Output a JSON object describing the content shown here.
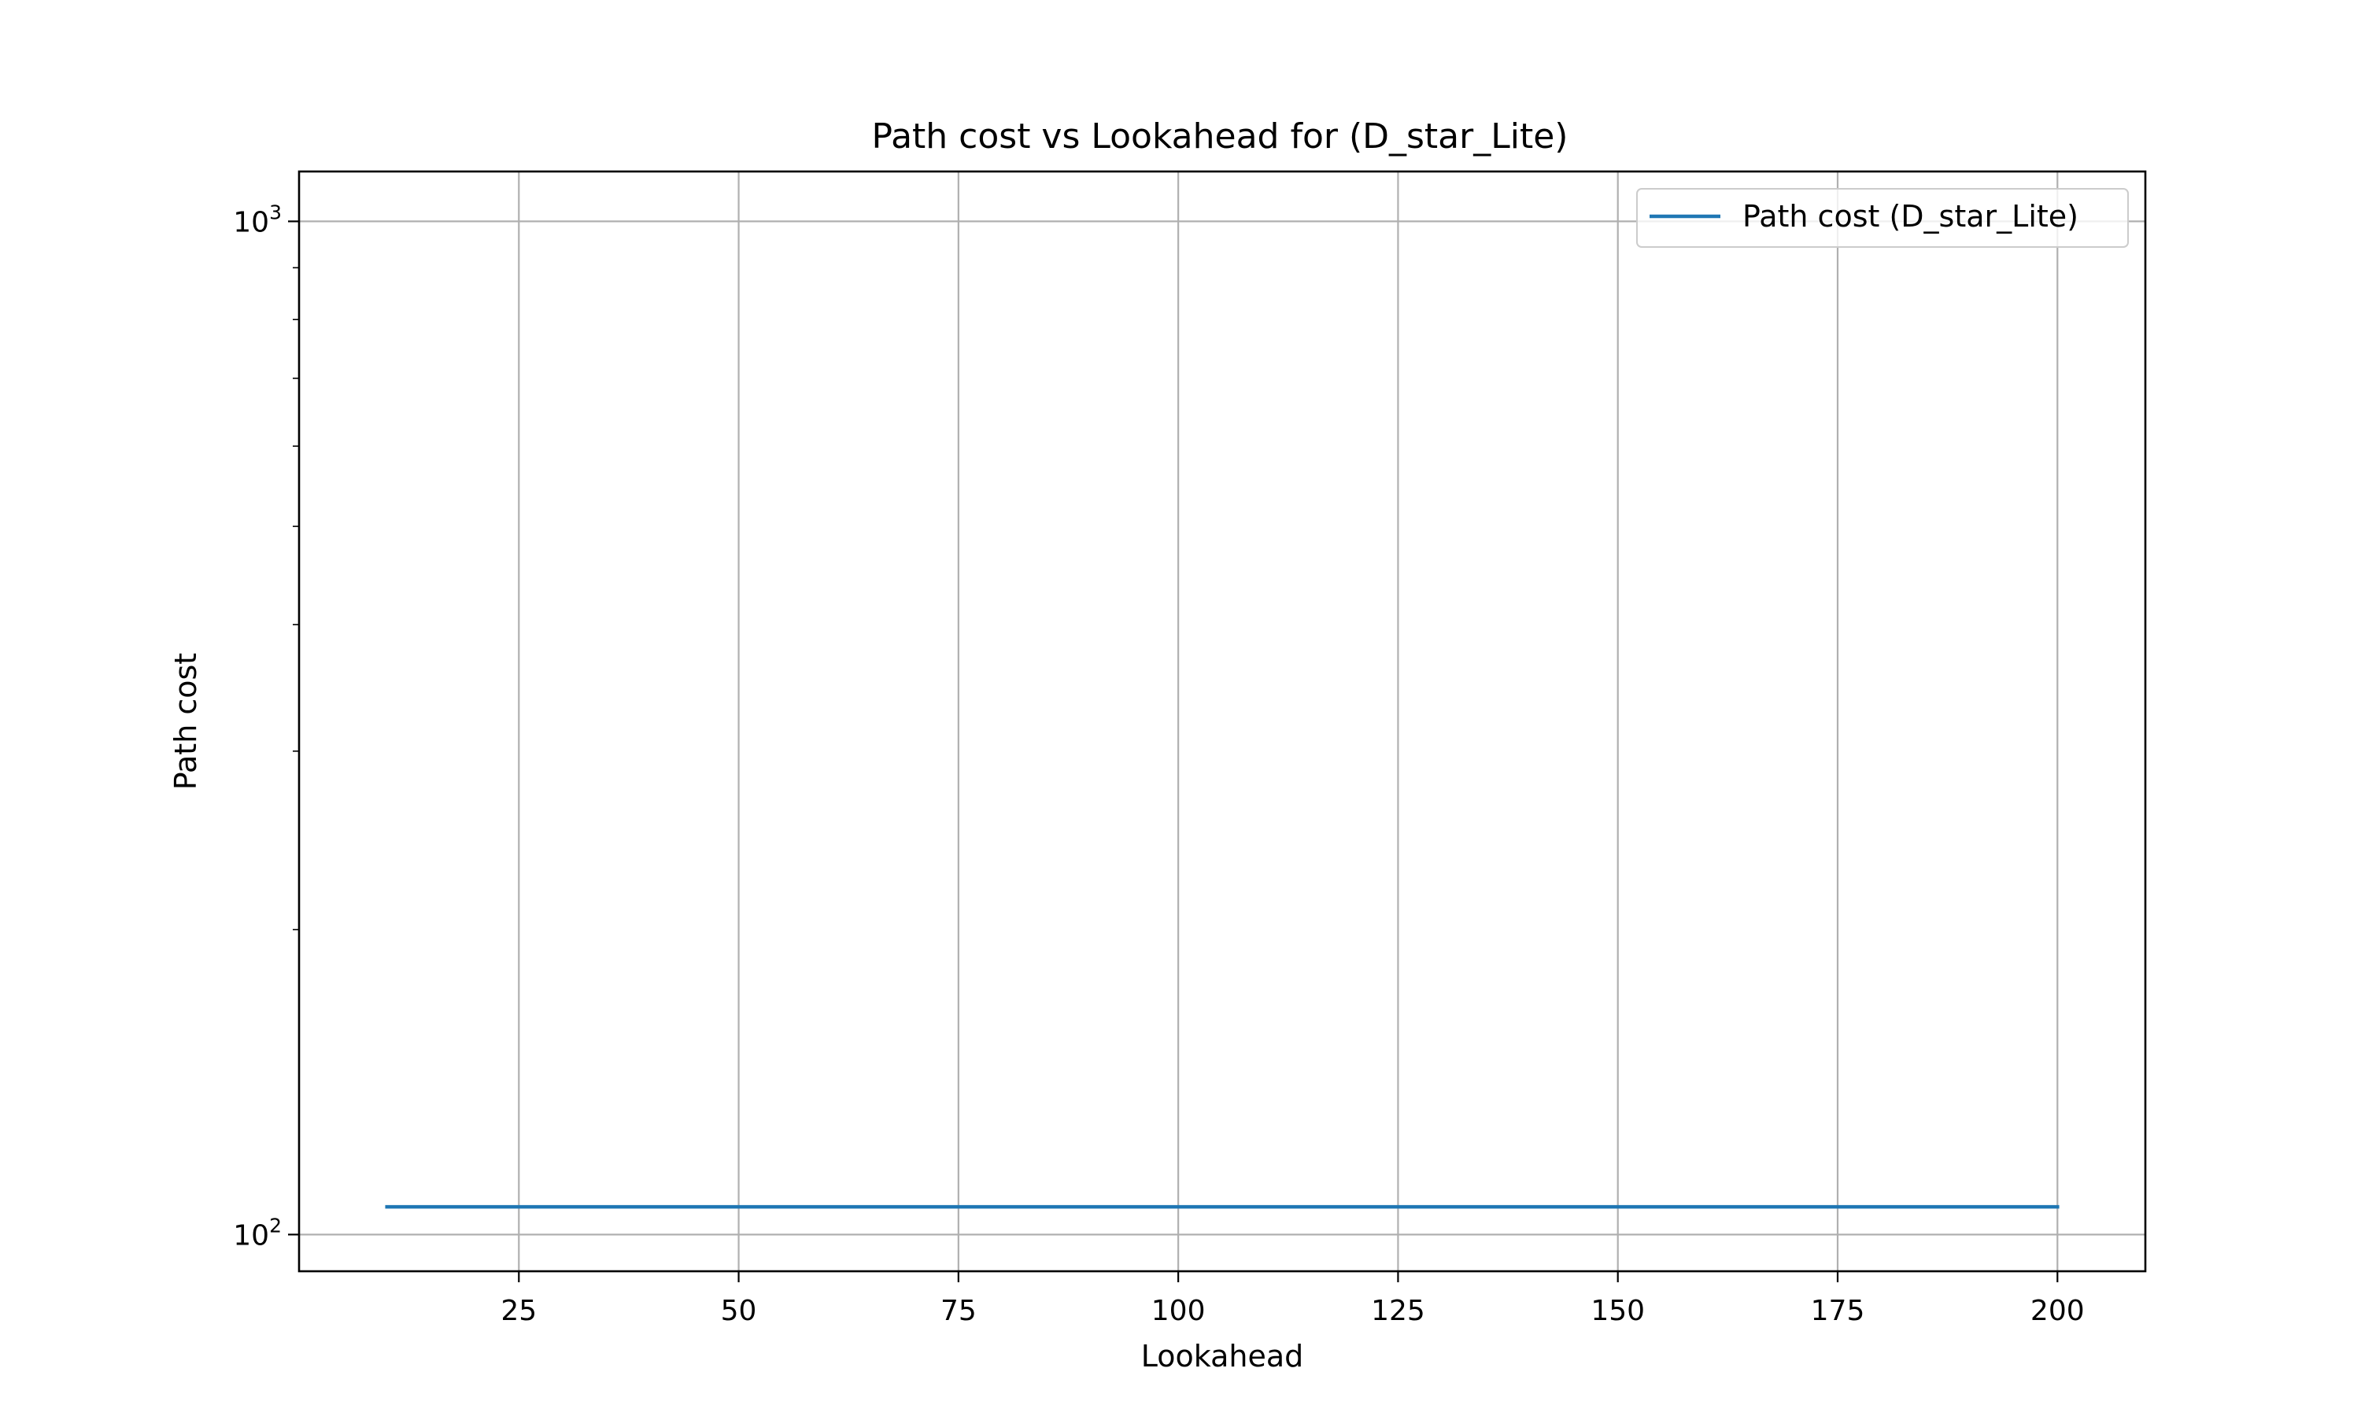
{
  "chart_data": {
    "type": "line",
    "title": "Path cost vs Lookahead for  (D_star_Lite)",
    "xlabel": "Lookahead",
    "ylabel": "Path cost",
    "xlim": [
      0,
      210
    ],
    "ylim": [
      92,
      1120
    ],
    "y_scale": "log",
    "grid": true,
    "legend_position": "top-right",
    "x_ticks": [
      25,
      50,
      75,
      100,
      125,
      150,
      175,
      200
    ],
    "x_tick_labels": [
      "25",
      "50",
      "75",
      "100",
      "125",
      "150",
      "175",
      "200"
    ],
    "y_major_ticks": [
      100,
      1000
    ],
    "y_tick_labels": [
      {
        "base": "10",
        "exp": "2"
      },
      {
        "base": "10",
        "exp": "3"
      }
    ],
    "series": [
      {
        "name": "Path cost (D_star_Lite)",
        "color": "#1f77b4",
        "x": [
          10,
          20,
          30,
          40,
          50,
          60,
          70,
          80,
          90,
          100,
          110,
          120,
          130,
          140,
          150,
          160,
          170,
          180,
          190,
          200
        ],
        "y": [
          106.5,
          106.5,
          106.5,
          106.5,
          106.5,
          106.5,
          106.5,
          106.5,
          106.5,
          106.5,
          106.5,
          106.5,
          106.5,
          106.5,
          106.5,
          106.5,
          106.5,
          106.5,
          106.5,
          106.5
        ]
      }
    ]
  }
}
